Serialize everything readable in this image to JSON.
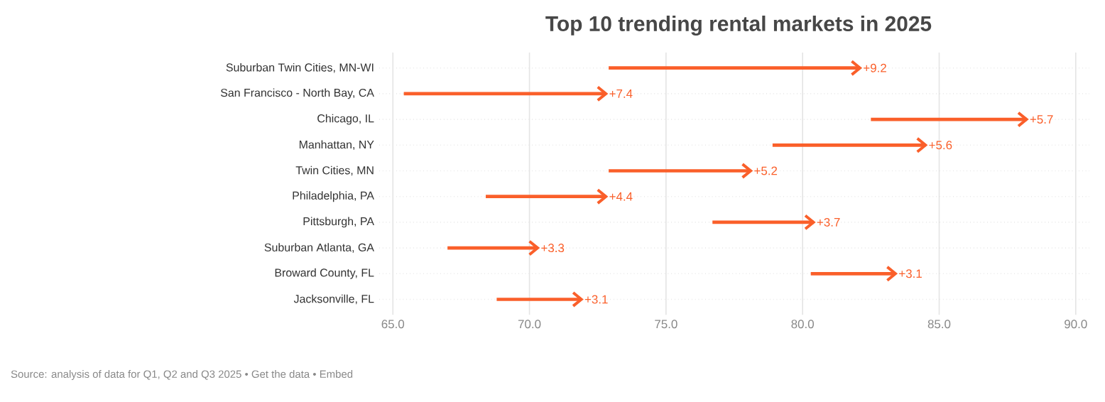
{
  "chart_data": {
    "type": "bar",
    "orientation": "horizontal",
    "title": "Top 10 trending rental markets in 2025",
    "categories": [
      "Suburban Twin Cities, MN-WI",
      "San Francisco - North Bay, CA",
      "Chicago, IL",
      "Manhattan, NY",
      "Twin Cities, MN",
      "Philadelphia, PA",
      "Pittsburgh, PA",
      "Suburban Atlanta, GA",
      "Broward County, FL",
      "Jacksonville, FL"
    ],
    "base": [
      72.9,
      65.4,
      82.5,
      78.9,
      72.9,
      68.4,
      76.7,
      67.0,
      80.3,
      68.8
    ],
    "values": [
      9.2,
      7.4,
      5.7,
      5.6,
      5.2,
      4.4,
      3.7,
      3.3,
      3.1,
      3.1
    ],
    "value_labels": [
      "+9.2",
      "+7.4",
      "+5.7",
      "+5.6",
      "+5.2",
      "+4.4",
      "+3.7",
      "+3.3",
      "+3.1",
      "+3.1"
    ],
    "color": "#fa5f2a",
    "xlim": [
      64.5,
      90.5
    ],
    "xticks": [
      {
        "value": 65,
        "label": "65.0"
      },
      {
        "value": 70,
        "label": "70.0"
      },
      {
        "value": 75,
        "label": "75.0"
      },
      {
        "value": 80,
        "label": "80.0"
      },
      {
        "value": 85,
        "label": "85.0"
      },
      {
        "value": 90,
        "label": "90.0"
      }
    ],
    "grid": true,
    "annotations": [
      "Source: analysis of data for Q1, Q2 and Q3 2025 • Get the data • Embed"
    ]
  }
}
